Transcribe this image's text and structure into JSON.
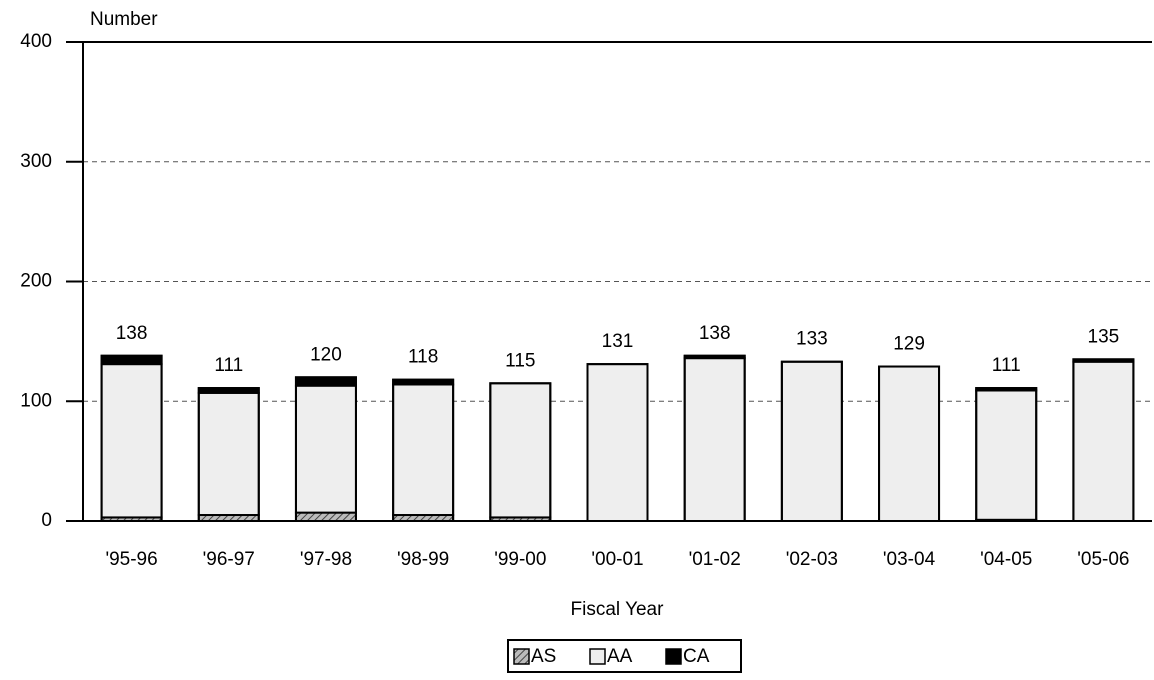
{
  "chart_data": {
    "type": "stacked_bar",
    "y_label": "Number",
    "x_label": "Fiscal Year",
    "categories": [
      "'95-96",
      "'96-97",
      "'97-98",
      "'98-99",
      "'99-00",
      "'00-01",
      "'01-02",
      "'02-03",
      "'03-04",
      "'04-05",
      "'05-06"
    ],
    "series": [
      {
        "name": "AS",
        "color": "#808080",
        "pattern": "hatch",
        "values": [
          3,
          5,
          7,
          5,
          3,
          0,
          0,
          0,
          0,
          1,
          0
        ]
      },
      {
        "name": "AA",
        "color": "#eeeeee",
        "values": [
          128,
          102,
          106,
          109,
          112,
          131,
          136,
          133,
          129,
          108,
          133
        ]
      },
      {
        "name": "CA",
        "color": "#000000",
        "values": [
          7,
          4,
          7,
          4,
          0,
          0,
          2,
          0,
          0,
          2,
          2
        ]
      }
    ],
    "totals": [
      138,
      111,
      120,
      118,
      115,
      131,
      138,
      133,
      129,
      111,
      135
    ],
    "ylim": [
      0,
      400
    ],
    "yticks": [
      0,
      100,
      200,
      300,
      400
    ],
    "grid": true,
    "legend": "bottom"
  }
}
